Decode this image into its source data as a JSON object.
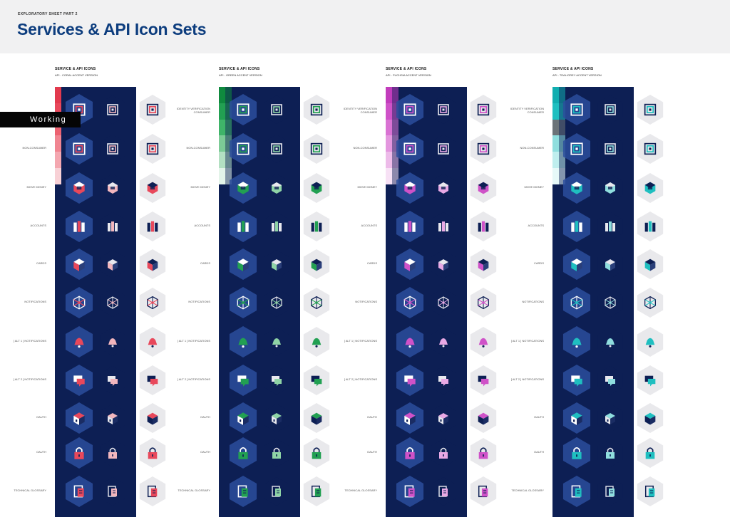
{
  "header": {
    "kicker": "EXPLORATORY SHEET PART 2",
    "title": "Services & API Icon Sets"
  },
  "status_tag": "Working",
  "icon_types": [
    "identity",
    "identity",
    "money",
    "accounts",
    "cards",
    "notifications",
    "bell",
    "chat",
    "cube",
    "lock",
    "book"
  ],
  "sets": [
    {
      "title": "SERVICE & API ICONS",
      "subtitle": "API - CORAL ACCENT VERSION",
      "accent": "#e8485b",
      "accent_light": "#f2b6bd",
      "swatch_colors": [
        "#e23a4e",
        "#e8485b",
        "#ec6271",
        "#f08591",
        "#f4a7b0",
        "#f8d1d6"
      ],
      "labels": [
        "",
        "NON-CONSUMER",
        "MOVE MONEY",
        "ACCOUNTS",
        "CARDS",
        "NOTIFICATIONS",
        "[ ALT 1 ] NOTIFICATIONS",
        "[ ALT 2 ] NOTIFICATIONS",
        "OAUTH",
        "OAUTH",
        "TECHNICAL GLOSSARY"
      ]
    },
    {
      "title": "SERVICE & API ICONS",
      "subtitle": "API - GREEN ACCENT VERSION",
      "accent": "#22a052",
      "accent_light": "#8fd4a6",
      "swatch_colors": [
        "#0f8a3e",
        "#22a052",
        "#3fb469",
        "#7ccb96",
        "#b3e0c2",
        "#e3f4e9"
      ],
      "labels": [
        "IDENTITY VERIFICATION CONSUMER",
        "NON-CONSUMER",
        "MOVE MONEY",
        "ACCOUNTS",
        "CARDS",
        "NOTIFICATIONS",
        "[ ALT 1 ] NOTIFICATIONS",
        "[ ALT 2 ] NOTIFICATIONS",
        "OAUTH",
        "OAUTH",
        "TECHNICAL GLOSSARY"
      ]
    },
    {
      "title": "SERVICE & API ICONS",
      "subtitle": "API - FUCHSIA ACCENT VERSION",
      "accent": "#cf52c8",
      "accent_light": "#e9a9e5",
      "swatch_colors": [
        "#c23cbc",
        "#cf52c8",
        "#d972d3",
        "#e396de",
        "#edbbe9",
        "#f7e1f5"
      ],
      "labels": [
        "IDENTITY VERIFICATION CONSUMER",
        "NON-CONSUMER",
        "MOVE MONEY",
        "ACCOUNTS",
        "CARDS",
        "NOTIFICATIONS",
        "[ ALT 1 ] NOTIFICATIONS",
        "[ ALT 2 ] NOTIFICATIONS",
        "OAUTH",
        "OAUTH",
        "TECHNICAL GLOSSARY"
      ]
    },
    {
      "title": "SERVICE & API ICONS",
      "subtitle": "API - TEAL/GREY ACCENT VERSION",
      "accent": "#1fbfc0",
      "accent_light": "#8fdede",
      "swatch_colors": [
        "#11aeb0",
        "#1fbfc0",
        "#6b7378",
        "#8fdede",
        "#bfeeee",
        "#e6f8f8"
      ],
      "labels": [
        "IDENTITY VERIFICATION CONSUMER",
        "NON-CONSUMER",
        "MOVE MONEY",
        "ACCOUNTS",
        "CARDS",
        "NOTIFICATIONS",
        "[ ALT 1 ] NOTIFICATIONS",
        "[ ALT 2 ] NOTIFICATIONS",
        "OAUTH",
        "OAUTH",
        "TECHNICAL GLOSSARY"
      ]
    }
  ]
}
